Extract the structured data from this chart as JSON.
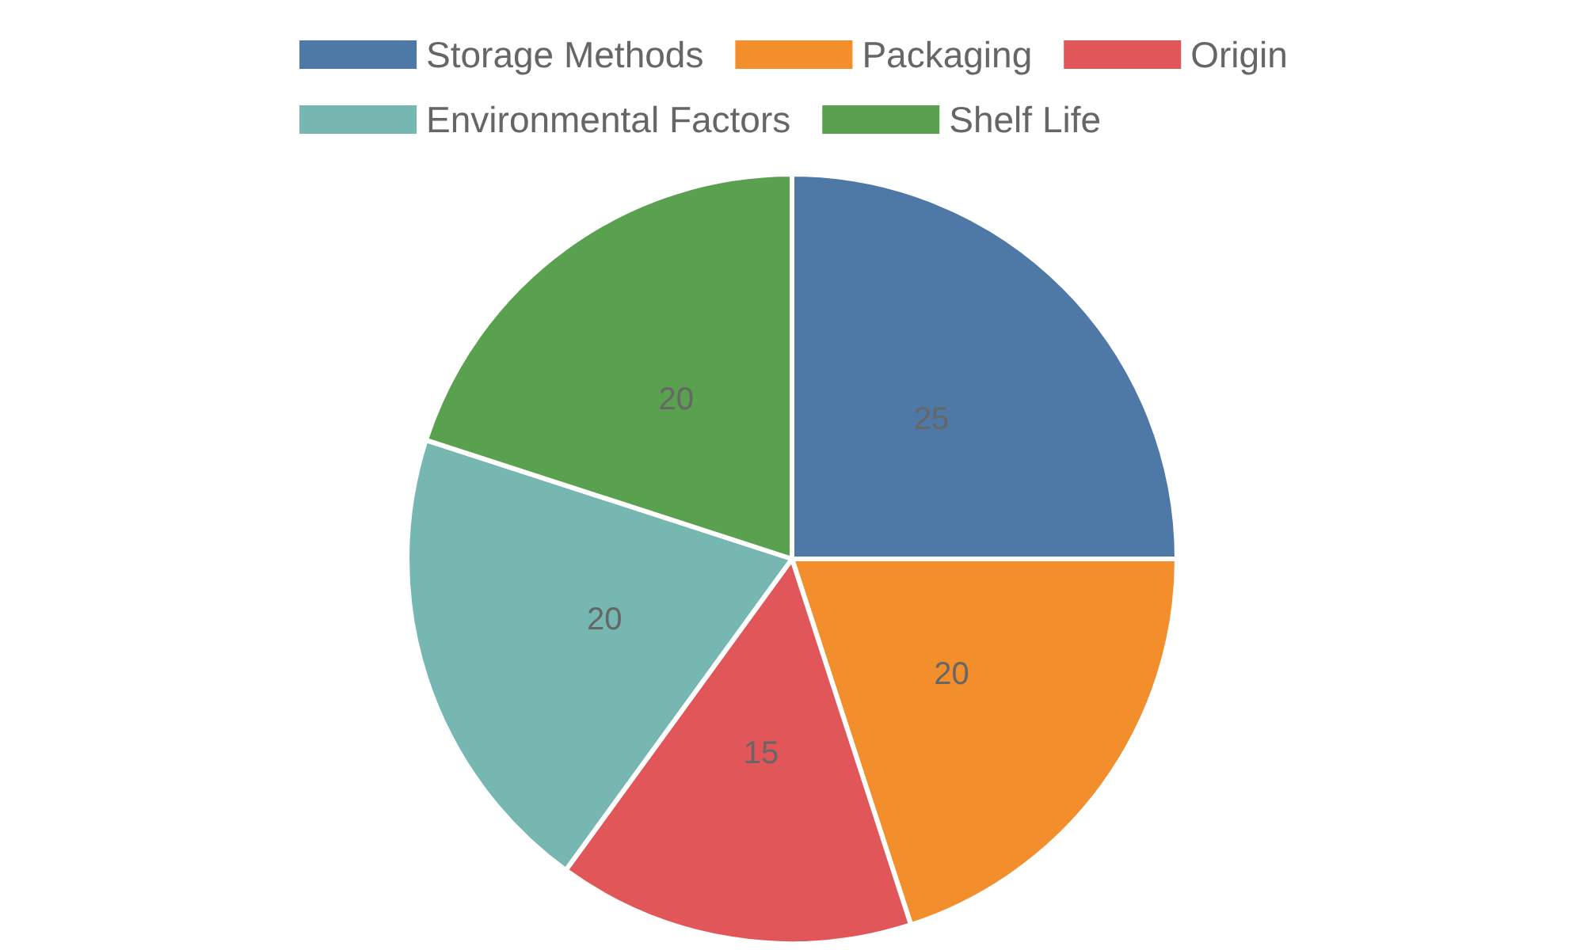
{
  "chart_data": {
    "type": "pie",
    "categories": [
      "Storage Methods",
      "Packaging",
      "Origin",
      "Environmental Factors",
      "Shelf Life"
    ],
    "values": [
      25,
      20,
      15,
      20,
      20
    ],
    "colors": [
      "#4e79a7",
      "#f28e2b",
      "#e15759",
      "#76b7b2",
      "#59a14f"
    ],
    "data_labels": true,
    "legend": "top"
  }
}
